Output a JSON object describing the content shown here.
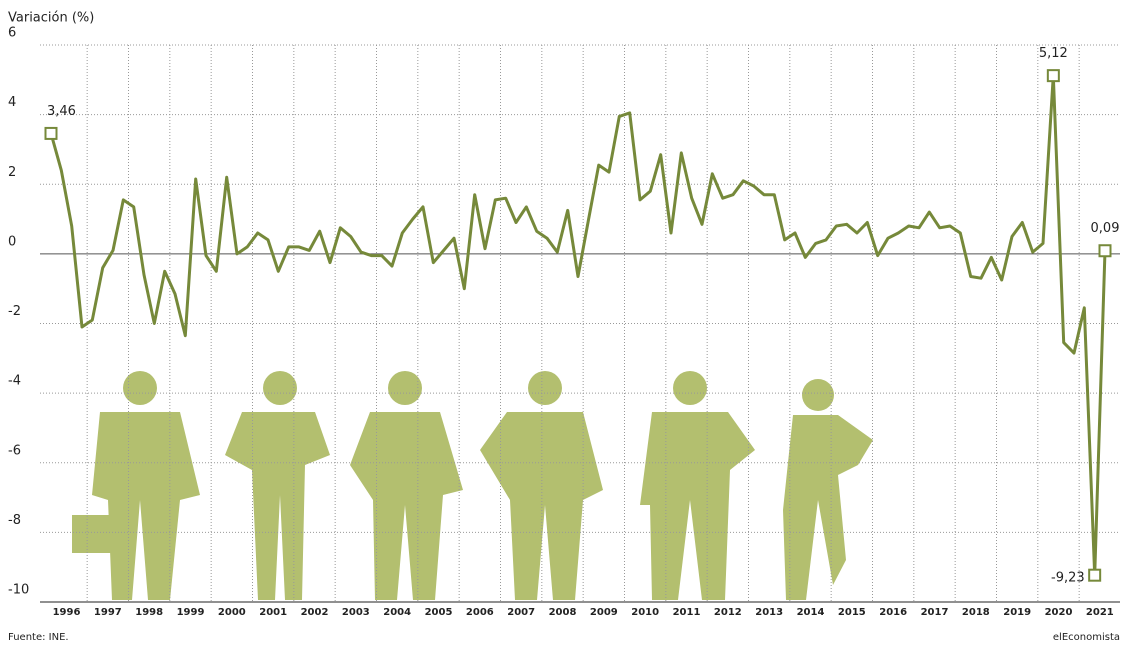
{
  "chart_data": {
    "type": "line",
    "y_label": "Variación (%)",
    "source": "Fuente: INE.",
    "brand": "elEconomista",
    "categories": [
      "1996",
      null,
      null,
      null,
      "1997",
      null,
      null,
      null,
      "1998",
      null,
      null,
      null,
      "1999",
      null,
      null,
      null,
      "2000",
      null,
      null,
      null,
      "2001",
      null,
      null,
      null,
      "2002",
      null,
      null,
      null,
      "2003",
      null,
      null,
      null,
      "2004",
      null,
      null,
      null,
      "2005",
      null,
      null,
      null,
      "2006",
      null,
      null,
      null,
      "2007",
      null,
      null,
      null,
      "2008",
      null,
      null,
      null,
      "2009",
      null,
      null,
      null,
      "2010",
      null,
      null,
      null,
      "2011",
      null,
      null,
      null,
      "2012",
      null,
      null,
      null,
      "2013",
      null,
      null,
      null,
      "2014",
      null,
      null,
      null,
      "2015",
      null,
      null,
      null,
      "2016",
      null,
      null,
      null,
      "2017",
      null,
      null,
      null,
      "2018",
      null,
      null,
      null,
      "2019",
      null,
      null,
      null,
      "2020",
      null,
      null,
      null,
      "2021",
      null,
      null
    ],
    "values": [
      3.46,
      2.4,
      0.8,
      -2.1,
      -1.9,
      -0.4,
      0.1,
      1.55,
      1.35,
      -0.6,
      -2.0,
      -0.5,
      -1.15,
      -2.35,
      2.15,
      -0.05,
      -0.5,
      2.2,
      0.0,
      0.2,
      0.6,
      0.4,
      -0.5,
      0.2,
      0.2,
      0.1,
      0.65,
      -0.25,
      0.75,
      0.5,
      0.05,
      -0.05,
      -0.05,
      -0.35,
      0.6,
      1.0,
      1.35,
      -0.25,
      0.1,
      0.45,
      -1.0,
      1.7,
      0.15,
      1.55,
      1.6,
      0.9,
      1.35,
      0.65,
      0.45,
      0.05,
      1.25,
      -0.65,
      0.95,
      2.55,
      2.35,
      3.95,
      4.05,
      1.55,
      1.8,
      2.85,
      0.6,
      2.9,
      1.6,
      0.85,
      2.3,
      1.6,
      1.7,
      2.1,
      1.95,
      1.7,
      1.7,
      0.4,
      0.6,
      -0.1,
      0.3,
      0.4,
      0.8,
      0.85,
      0.6,
      0.9,
      -0.05,
      0.45,
      0.6,
      0.8,
      0.75,
      1.2,
      0.75,
      0.8,
      0.6,
      -0.65,
      -0.7,
      -0.1,
      -0.75,
      0.5,
      0.9,
      0.05,
      0.3,
      5.12,
      -2.55,
      -2.85,
      -1.55,
      -9.23,
      0.09
    ],
    "value_labels": [
      "3,46",
      null,
      null,
      null,
      null,
      null,
      null,
      null,
      null,
      null,
      null,
      null,
      null,
      null,
      null,
      null,
      null,
      null,
      null,
      null,
      null,
      null,
      null,
      null,
      null,
      null,
      null,
      null,
      null,
      null,
      null,
      null,
      null,
      null,
      null,
      null,
      null,
      null,
      null,
      null,
      null,
      null,
      null,
      null,
      null,
      null,
      null,
      null,
      null,
      null,
      null,
      null,
      null,
      null,
      null,
      null,
      null,
      null,
      null,
      null,
      null,
      null,
      null,
      null,
      null,
      null,
      null,
      null,
      null,
      null,
      null,
      null,
      null,
      null,
      null,
      null,
      null,
      null,
      null,
      null,
      null,
      null,
      null,
      null,
      null,
      null,
      null,
      null,
      null,
      null,
      null,
      null,
      null,
      null,
      null,
      null,
      null,
      "5,12",
      null,
      null,
      null,
      "-9,23",
      "0,09"
    ],
    "color": "#76893a",
    "ylim": [
      -10,
      6
    ],
    "yticks": [
      -10,
      -8,
      -6,
      -4,
      -2,
      0,
      2,
      4,
      6
    ],
    "grid": true
  }
}
